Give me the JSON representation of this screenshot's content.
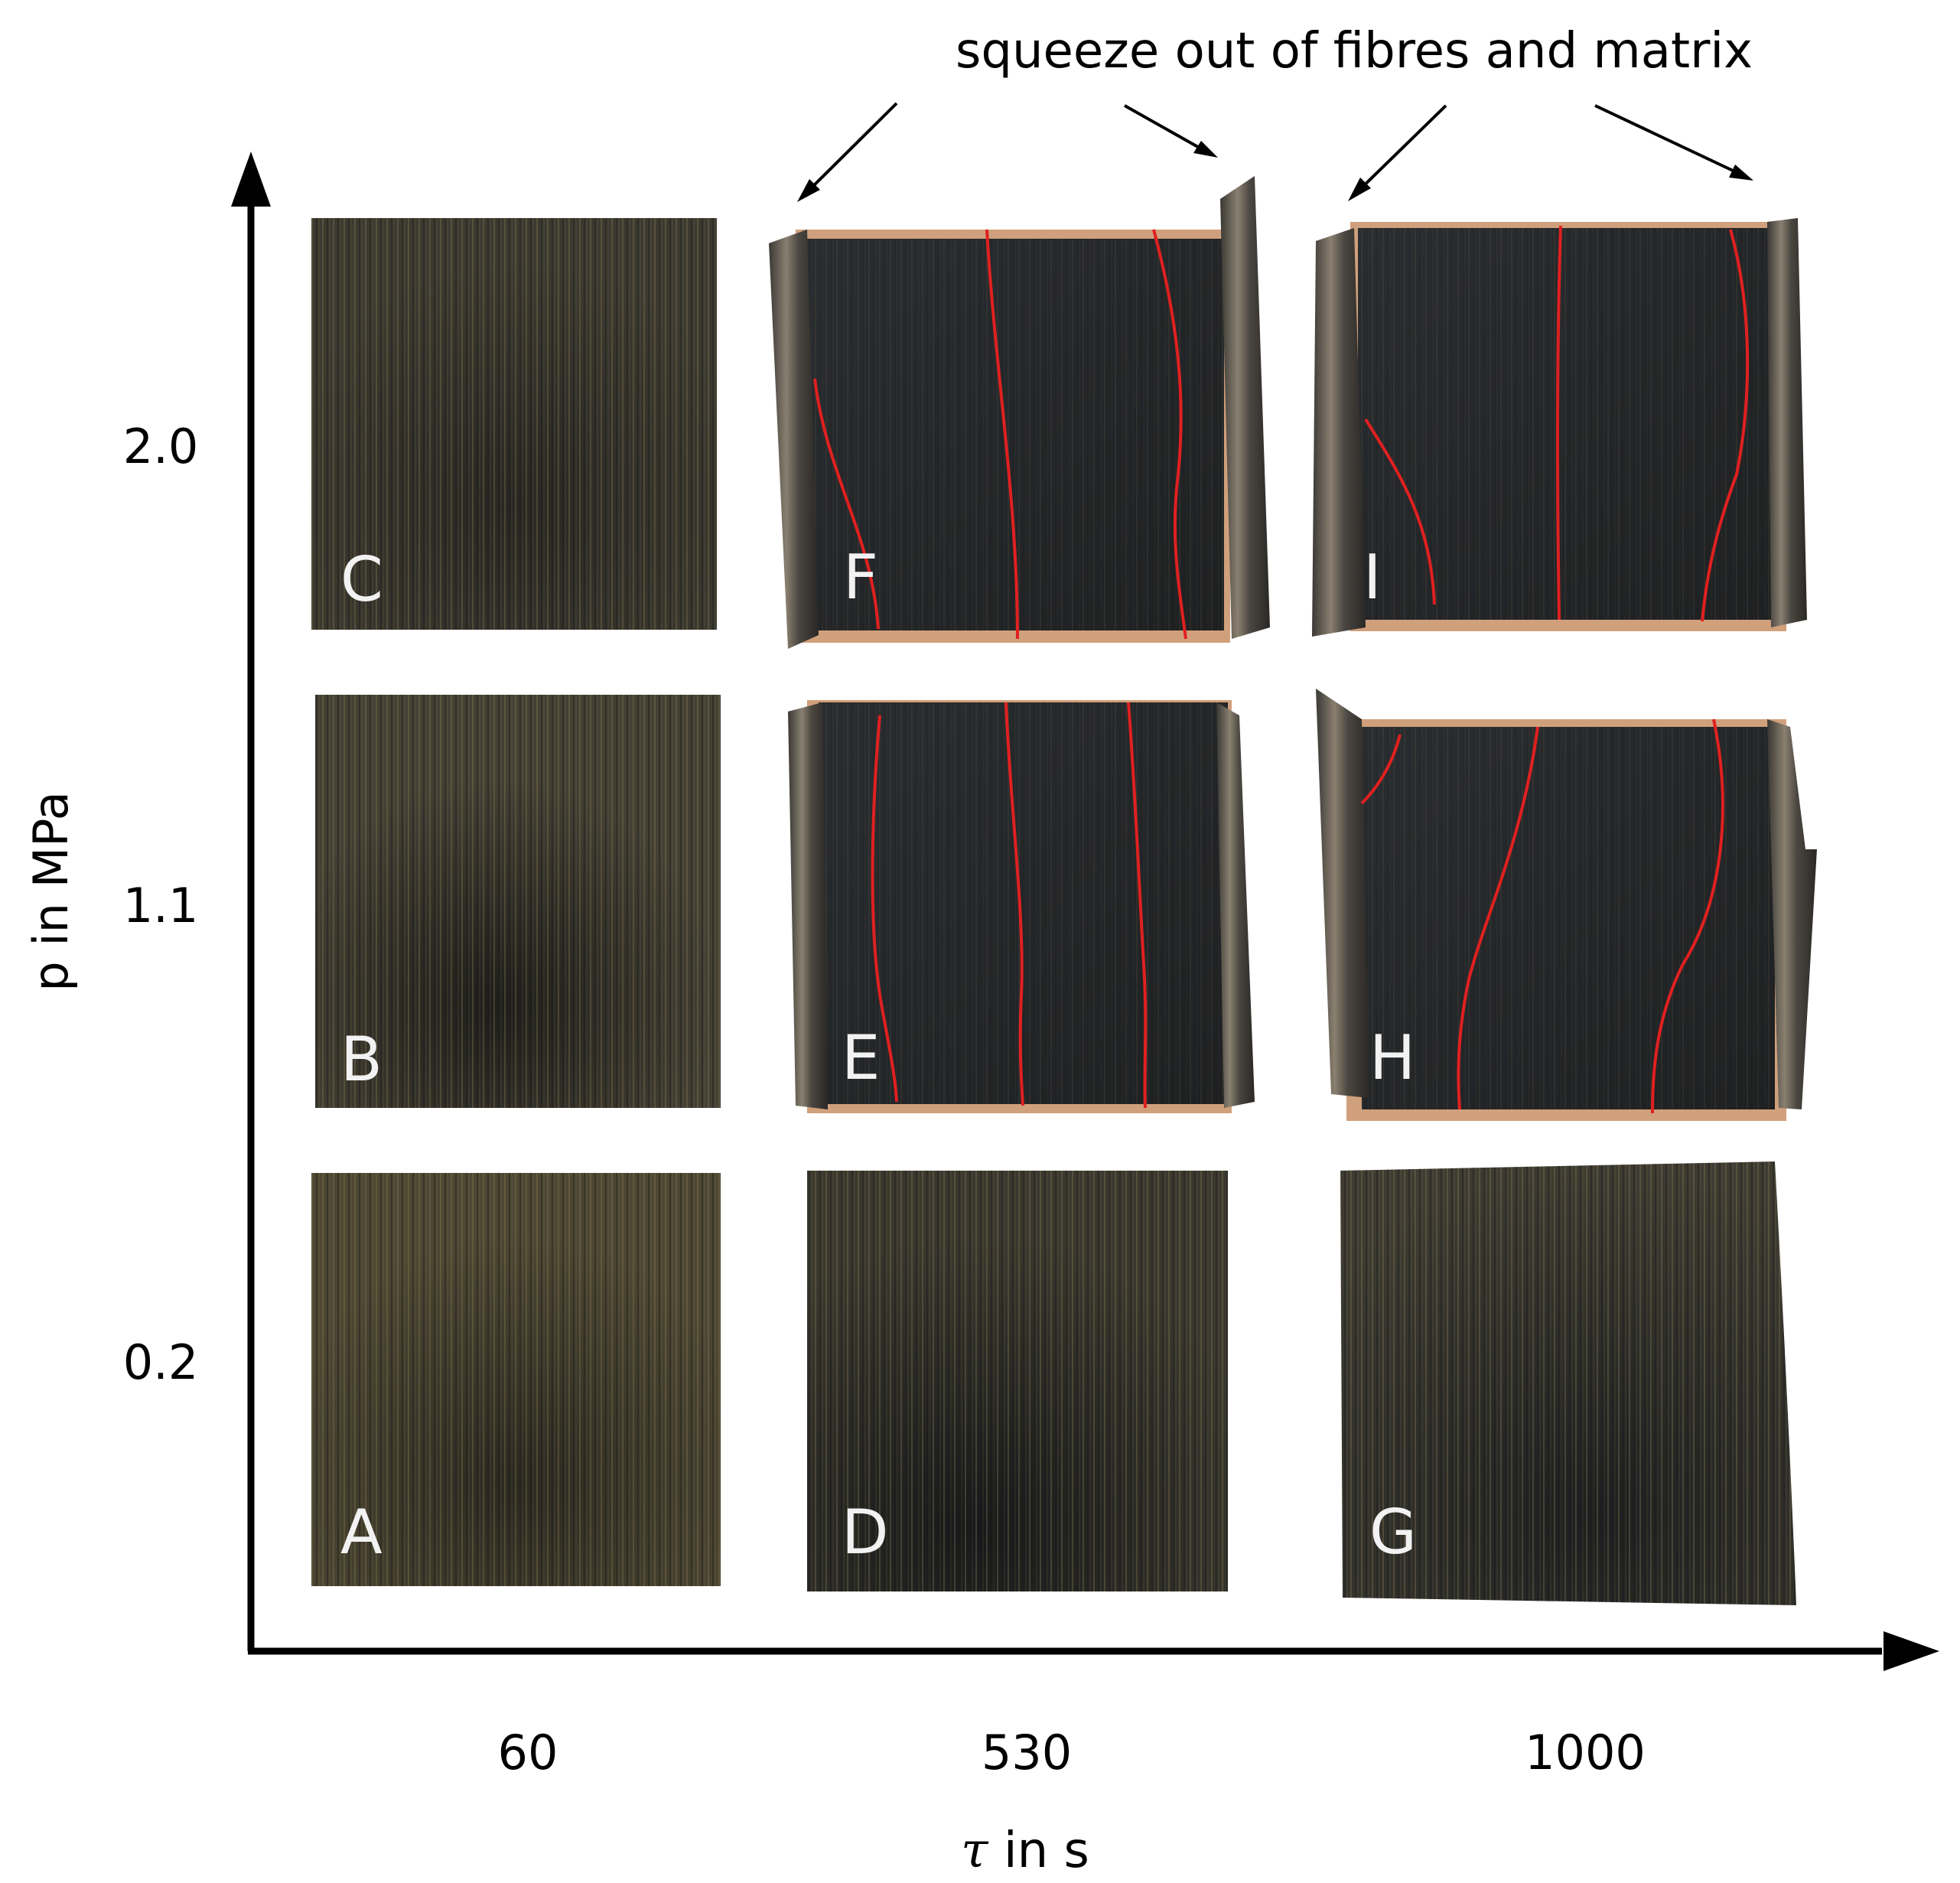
{
  "annotation": "squeeze out of fibres and matrix",
  "axes": {
    "x_label_symbol": "τ",
    "x_label_rest": " in s",
    "y_label": "p in MPa",
    "x_ticks": [
      "60",
      "530",
      "1000"
    ],
    "y_ticks": [
      "2.0",
      "1.1",
      "0.2"
    ]
  },
  "samples": [
    {
      "letter": "A",
      "tau": "60",
      "p": "0.2",
      "state": "plain"
    },
    {
      "letter": "B",
      "tau": "60",
      "p": "1.1",
      "state": "plain"
    },
    {
      "letter": "C",
      "tau": "60",
      "p": "2.0",
      "state": "plain"
    },
    {
      "letter": "D",
      "tau": "530",
      "p": "0.2",
      "state": "plain"
    },
    {
      "letter": "E",
      "tau": "530",
      "p": "1.1",
      "state": "squeezed"
    },
    {
      "letter": "F",
      "tau": "530",
      "p": "2.0",
      "state": "squeezed"
    },
    {
      "letter": "G",
      "tau": "1000",
      "p": "0.2",
      "state": "plain"
    },
    {
      "letter": "H",
      "tau": "1000",
      "p": "1.1",
      "state": "squeezed"
    },
    {
      "letter": "I",
      "tau": "1000",
      "p": "2.0",
      "state": "squeezed"
    }
  ],
  "colors": {
    "fibre_line": "#e02020",
    "edge_copper": "#d8a07a",
    "axis": "#000000"
  }
}
